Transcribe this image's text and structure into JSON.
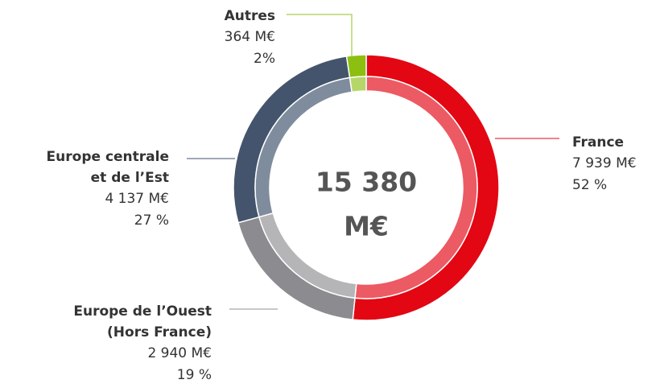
{
  "chart_data": {
    "type": "donut",
    "categories": [
      "France",
      "Europe de l’Ouest\n(Hors France)",
      "Europe centrale\net de l’Est",
      "Autres"
    ],
    "values": [
      7939,
      2940,
      4137,
      364
    ],
    "value_labels": [
      "7 939 M€",
      "2 940 M€",
      "4 137 M€",
      "364 M€"
    ],
    "percentages": [
      52,
      19,
      27,
      2
    ],
    "percentage_labels": [
      "52 %",
      "19 %",
      "27  %",
      "2%"
    ],
    "colors": [
      "#e30613",
      "#8c8b90",
      "#44546c",
      "#8cbf0f"
    ],
    "inner_colors": [
      "#ec5a64",
      "#b5b5b7",
      "#7f8c9d",
      "#b6d66a"
    ],
    "total": 15380,
    "total_lines": [
      "15 380",
      "M€"
    ]
  }
}
